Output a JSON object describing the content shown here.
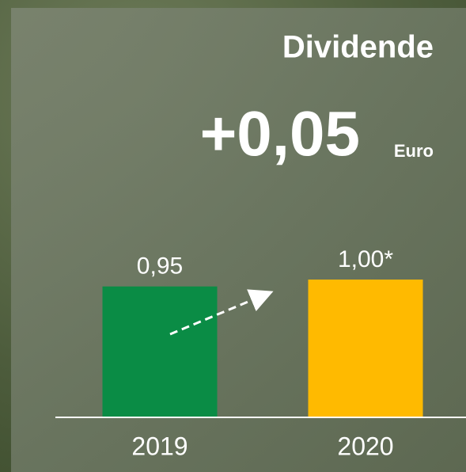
{
  "chart_data": {
    "type": "bar",
    "title": "Dividende",
    "annotation": "+0,05",
    "annotation_unit": "Euro",
    "categories": [
      "2019",
      "2020"
    ],
    "values": [
      0.95,
      1.0
    ],
    "value_labels": [
      "0,95",
      "1,00*"
    ],
    "colors": [
      "#0a8c45",
      "#ffba00"
    ],
    "ylim": [
      0,
      3
    ]
  }
}
